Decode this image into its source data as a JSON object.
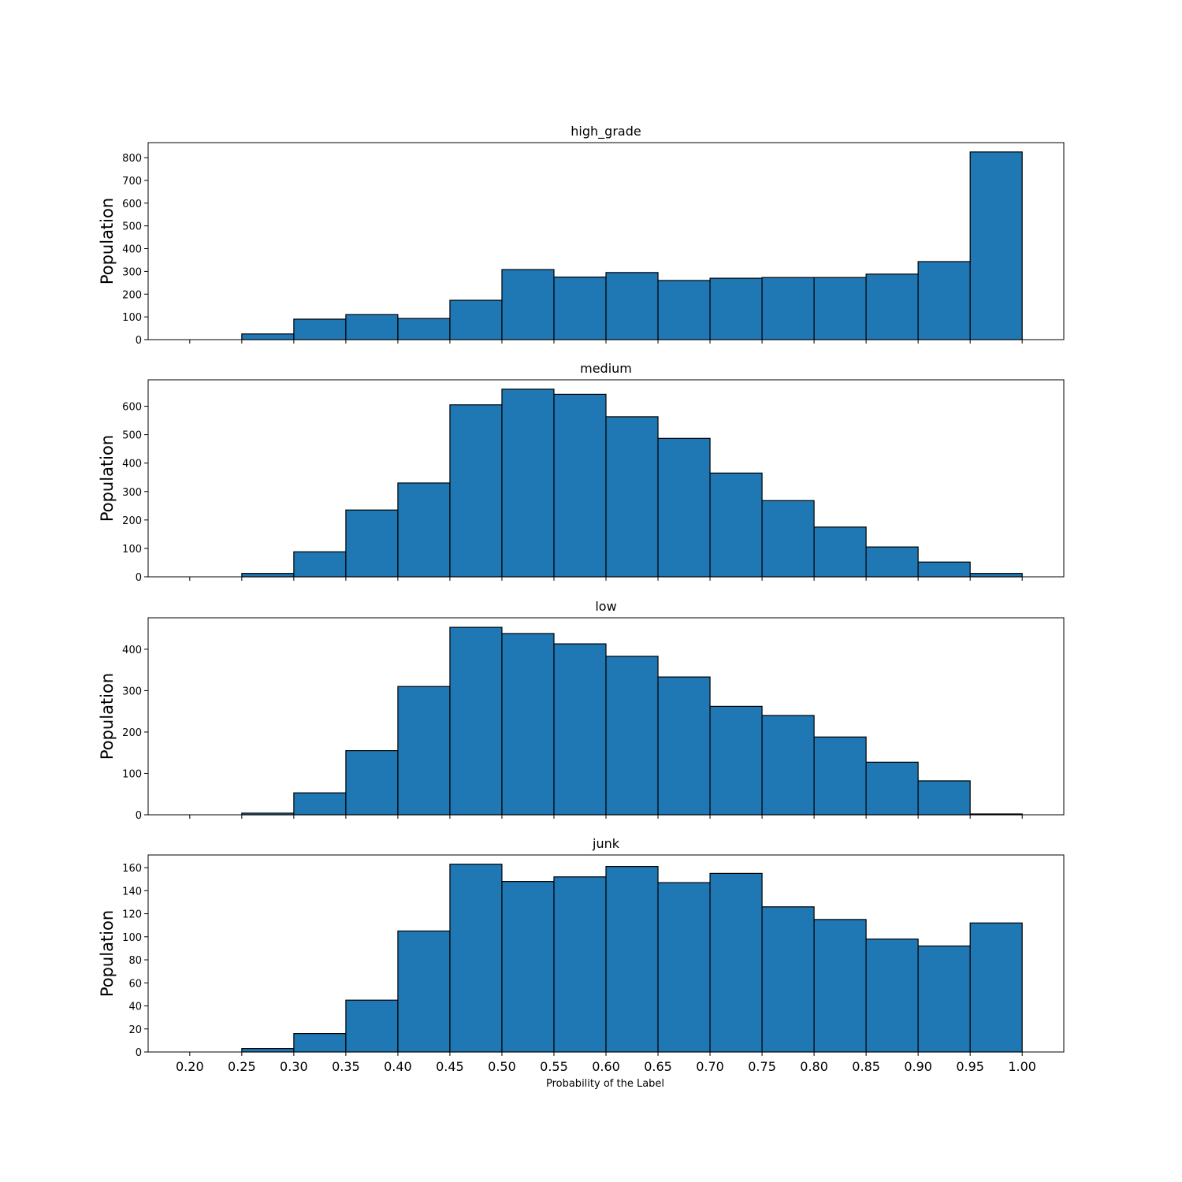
{
  "chart_data": {
    "type": "bar",
    "xlabel": "Probability of the Label",
    "xlim": [
      0.16,
      1.04
    ],
    "xticks": [
      "0.20",
      "0.25",
      "0.30",
      "0.35",
      "0.40",
      "0.45",
      "0.50",
      "0.55",
      "0.60",
      "0.65",
      "0.70",
      "0.75",
      "0.80",
      "0.85",
      "0.90",
      "0.95",
      "1.00"
    ],
    "bin_edges": [
      0.2,
      0.25,
      0.3,
      0.35,
      0.4,
      0.45,
      0.5,
      0.55,
      0.6,
      0.65,
      0.7,
      0.75,
      0.8,
      0.85,
      0.9,
      0.95,
      1.0
    ],
    "bar_color": "#1f77b4",
    "panels": [
      {
        "title": "high_grade",
        "ylabel": "Population",
        "ylim": [
          0,
          866
        ],
        "yticks": [
          0,
          100,
          200,
          300,
          400,
          500,
          600,
          700,
          800
        ],
        "values": [
          0,
          25,
          90,
          110,
          93,
          173,
          308,
          275,
          295,
          260,
          270,
          273,
          273,
          288,
          343,
          825
        ]
      },
      {
        "title": "medium",
        "ylabel": "Population",
        "ylim": [
          0,
          693
        ],
        "yticks": [
          0,
          100,
          200,
          300,
          400,
          500,
          600
        ],
        "values": [
          0,
          12,
          88,
          235,
          330,
          605,
          660,
          642,
          563,
          487,
          365,
          268,
          175,
          105,
          52,
          12
        ]
      },
      {
        "title": "low",
        "ylabel": "Population",
        "ylim": [
          0,
          476
        ],
        "yticks": [
          0,
          100,
          200,
          300,
          400
        ],
        "values": [
          0,
          4,
          53,
          155,
          310,
          453,
          438,
          413,
          383,
          333,
          262,
          240,
          188,
          127,
          82,
          2
        ]
      },
      {
        "title": "junk",
        "ylabel": "Population",
        "ylim": [
          0,
          171
        ],
        "yticks": [
          0,
          20,
          40,
          60,
          80,
          100,
          120,
          140,
          160
        ],
        "values": [
          0,
          3,
          16,
          45,
          105,
          163,
          148,
          152,
          161,
          147,
          155,
          126,
          115,
          98,
          92,
          112
        ]
      }
    ]
  }
}
